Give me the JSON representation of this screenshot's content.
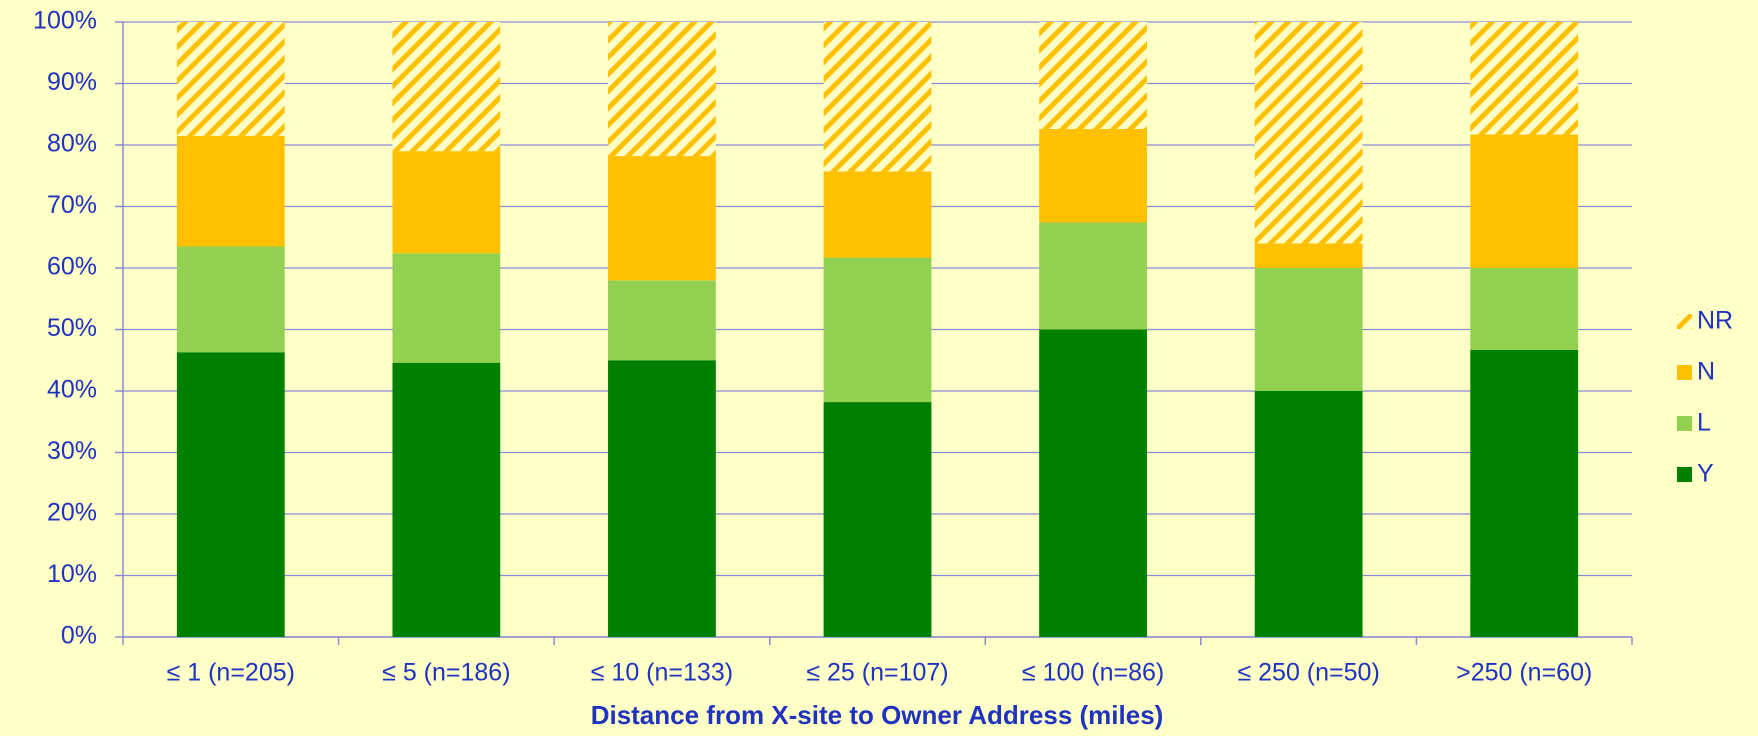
{
  "chart_data": {
    "type": "stacked_bar",
    "x_label": "Distance from X-site to Owner Address (miles)",
    "categories": [
      "≤ 1 (n=205)",
      "≤ 5 (n=186)",
      "≤ 10 (n=133)",
      "≤ 25 (n=107)",
      "≤ 100 (n=86)",
      "≤ 250 (n=50)",
      ">250 (n=60)"
    ],
    "series": [
      {
        "name": "Y",
        "color": "#008000",
        "values": [
          46.3,
          44.6,
          45,
          38.2,
          50,
          40,
          46.7
        ]
      },
      {
        "name": "L",
        "color": "#92d050",
        "values": [
          17.2,
          17.8,
          13,
          23.5,
          17.4,
          20,
          13.3
        ]
      },
      {
        "name": "N",
        "color": "#ffc000",
        "values": [
          18,
          16.6,
          20.2,
          14,
          15.2,
          4,
          21.7
        ]
      },
      {
        "name": "NR",
        "color": "#ffc000",
        "hatch": true,
        "values": [
          18.5,
          21,
          21.8,
          24.3,
          17.4,
          36,
          18.3
        ]
      }
    ],
    "ylim": [
      0,
      100
    ],
    "yticks": [
      {
        "value": 0,
        "label": "0%"
      },
      {
        "value": 10,
        "label": "10%"
      },
      {
        "value": 20,
        "label": "20%"
      },
      {
        "value": 30,
        "label": "30%"
      },
      {
        "value": 40,
        "label": "40%"
      },
      {
        "value": 50,
        "label": "50%"
      },
      {
        "value": 60,
        "label": "60%"
      },
      {
        "value": 70,
        "label": "70%"
      },
      {
        "value": 80,
        "label": "80%"
      },
      {
        "value": 90,
        "label": "90%"
      },
      {
        "value": 100,
        "label": "100%"
      }
    ],
    "grid": true,
    "legend": "right"
  }
}
